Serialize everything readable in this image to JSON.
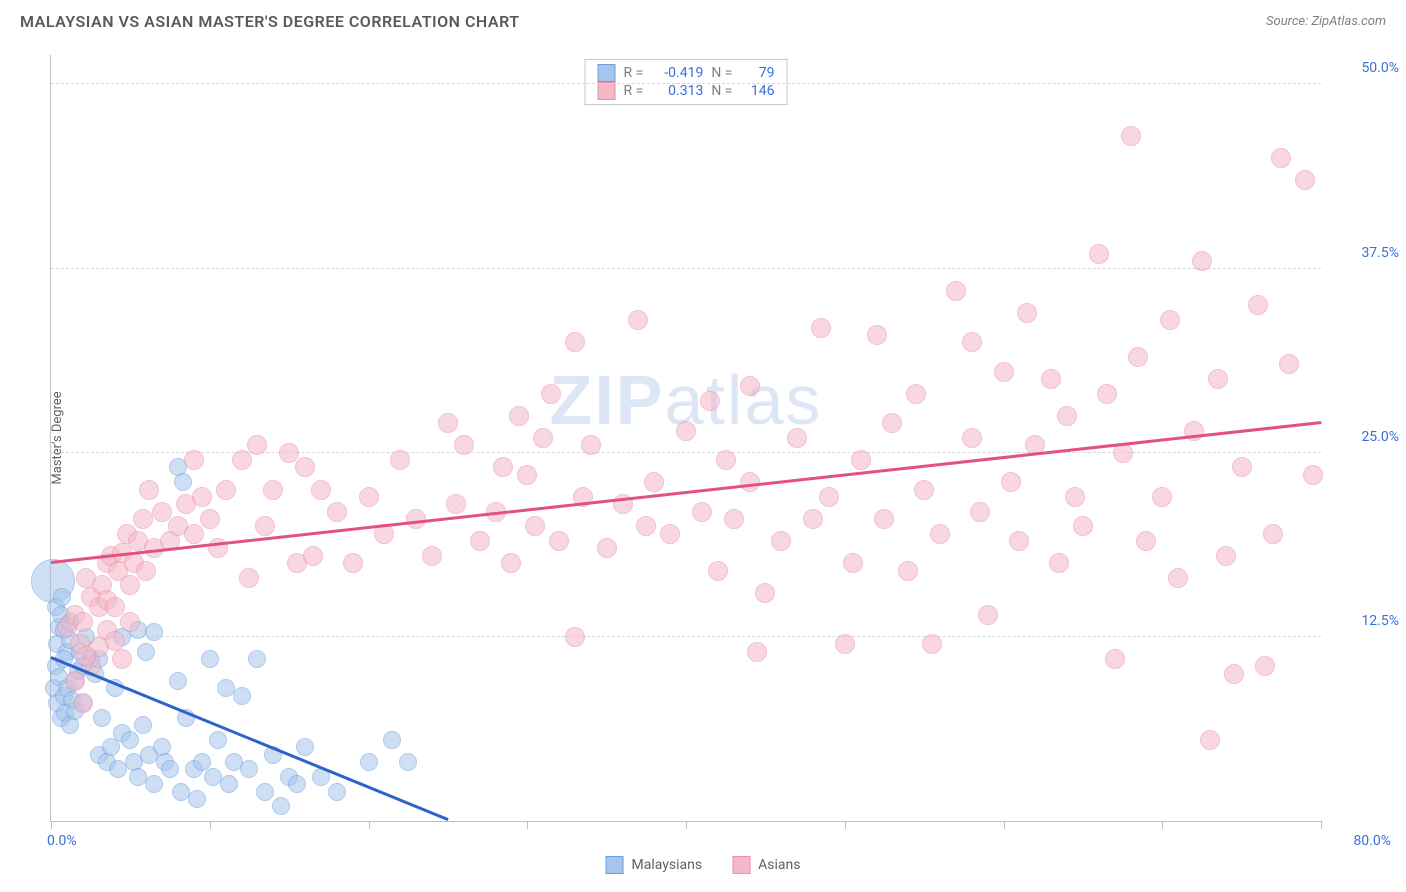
{
  "header": {
    "title": "MALAYSIAN VS ASIAN MASTER'S DEGREE CORRELATION CHART",
    "source_label": "Source: ",
    "source_value": "ZipAtlas.com"
  },
  "chart": {
    "type": "scatter",
    "background_color": "#ffffff",
    "grid_color": "#d8d8d8",
    "axis_color": "#c0c0c0",
    "y_axis_label": "Master's Degree",
    "y_axis_label_fontsize": 13,
    "y_axis_label_color": "#606060",
    "xlim": [
      0,
      80
    ],
    "ylim": [
      0,
      52
    ],
    "y_ticks": [
      {
        "value": 12.5,
        "label": "12.5%"
      },
      {
        "value": 25.0,
        "label": "25.0%"
      },
      {
        "value": 37.5,
        "label": "37.5%"
      },
      {
        "value": 50.0,
        "label": "50.0%"
      }
    ],
    "y_tick_color": "#3b6fd8",
    "x_tick_positions": [
      0,
      10,
      20,
      30,
      40,
      50,
      60,
      70,
      80
    ],
    "x_axis_min_label": "0.0%",
    "x_axis_max_label": "80.0%",
    "x_tick_color": "#3b6fd8",
    "watermark": {
      "text_bold": "ZIP",
      "text_light": "atlas",
      "color": "#9db8e2",
      "opacity": 0.35,
      "fontsize": 70
    }
  },
  "series": [
    {
      "id": "malaysians",
      "label": "Malaysians",
      "fill_color": "#a7c5ec",
      "stroke_color": "#6b9fe0",
      "fill_opacity": 0.55,
      "marker_radius": 9,
      "trend": {
        "x1": 0,
        "y1": 11.0,
        "x2": 25,
        "y2": 0,
        "color": "#2c63c9",
        "width": 2.5
      },
      "stats": {
        "r": "-0.419",
        "n": "79"
      },
      "points": [
        [
          0.1,
          16.3,
          22
        ],
        [
          0.3,
          14.5,
          9
        ],
        [
          0.5,
          13.2,
          9
        ],
        [
          0.6,
          14.0,
          9
        ],
        [
          0.4,
          12.0,
          9
        ],
        [
          0.8,
          13.0,
          9
        ],
        [
          0.3,
          10.5,
          9
        ],
        [
          0.2,
          9.0,
          9
        ],
        [
          0.5,
          9.8,
          9
        ],
        [
          0.7,
          15.2,
          9
        ],
        [
          1.0,
          11.5,
          9
        ],
        [
          1.2,
          12.3,
          9
        ],
        [
          0.4,
          8.0,
          9
        ],
        [
          0.8,
          8.5,
          9
        ],
        [
          1.0,
          9.0,
          9
        ],
        [
          1.3,
          8.2,
          9
        ],
        [
          1.5,
          9.5,
          9
        ],
        [
          1.7,
          10.2,
          9
        ],
        [
          0.6,
          7.0,
          9
        ],
        [
          0.9,
          7.3,
          9
        ],
        [
          1.2,
          6.5,
          9
        ],
        [
          1.5,
          7.5,
          9
        ],
        [
          1.8,
          11.5,
          9
        ],
        [
          2.0,
          8.0,
          9
        ],
        [
          2.2,
          12.5,
          9
        ],
        [
          2.5,
          11.0,
          9
        ],
        [
          2.8,
          10.0,
          9
        ],
        [
          3.0,
          4.5,
          9
        ],
        [
          3.2,
          7.0,
          9
        ],
        [
          3.5,
          4.0,
          9
        ],
        [
          3.8,
          5.0,
          9
        ],
        [
          4.0,
          9.0,
          9
        ],
        [
          4.2,
          3.5,
          9
        ],
        [
          4.5,
          6.0,
          9
        ],
        [
          5.0,
          5.5,
          9
        ],
        [
          5.2,
          4.0,
          9
        ],
        [
          5.5,
          3.0,
          9
        ],
        [
          5.8,
          6.5,
          9
        ],
        [
          6.0,
          11.5,
          9
        ],
        [
          6.2,
          4.5,
          9
        ],
        [
          6.5,
          2.5,
          9
        ],
        [
          7.0,
          5.0,
          9
        ],
        [
          7.2,
          4.0,
          9
        ],
        [
          7.5,
          3.5,
          9
        ],
        [
          8.0,
          9.5,
          9
        ],
        [
          8.2,
          2.0,
          9
        ],
        [
          8.5,
          7.0,
          9
        ],
        [
          9.0,
          3.5,
          9
        ],
        [
          9.2,
          1.5,
          9
        ],
        [
          9.5,
          4.0,
          9
        ],
        [
          10.0,
          11.0,
          9
        ],
        [
          10.2,
          3.0,
          9
        ],
        [
          10.5,
          5.5,
          9
        ],
        [
          11.0,
          9.0,
          9
        ],
        [
          11.2,
          2.5,
          9
        ],
        [
          11.5,
          4.0,
          9
        ],
        [
          12.0,
          8.5,
          9
        ],
        [
          12.5,
          3.5,
          9
        ],
        [
          13.0,
          11.0,
          9
        ],
        [
          13.5,
          2.0,
          9
        ],
        [
          14.0,
          4.5,
          9
        ],
        [
          14.5,
          1.0,
          9
        ],
        [
          15.0,
          3.0,
          9
        ],
        [
          15.5,
          2.5,
          9
        ],
        [
          16.0,
          5.0,
          9
        ],
        [
          17.0,
          3.0,
          9
        ],
        [
          18.0,
          2.0,
          9
        ],
        [
          20.0,
          4.0,
          9
        ],
        [
          21.5,
          5.5,
          9
        ],
        [
          22.5,
          4.0,
          9
        ],
        [
          8.0,
          24.0,
          9
        ],
        [
          8.3,
          23.0,
          9
        ],
        [
          4.5,
          12.5,
          9
        ],
        [
          5.5,
          13.0,
          9
        ],
        [
          6.5,
          12.8,
          9
        ],
        [
          3.0,
          11.0,
          9
        ],
        [
          2.0,
          10.5,
          9
        ],
        [
          1.2,
          13.5,
          9
        ],
        [
          0.8,
          11.0,
          9
        ]
      ]
    },
    {
      "id": "asians",
      "label": "Asians",
      "fill_color": "#f5b8c8",
      "stroke_color": "#e98fa8",
      "fill_opacity": 0.55,
      "marker_radius": 10,
      "trend": {
        "x1": 0,
        "y1": 17.5,
        "x2": 80,
        "y2": 27.0,
        "color": "#e3517e",
        "width": 2.5
      },
      "stats": {
        "r": "0.313",
        "n": "146"
      },
      "points": [
        [
          1.0,
          13.2,
          10
        ],
        [
          1.5,
          14.0,
          10
        ],
        [
          2.0,
          13.5,
          10
        ],
        [
          2.5,
          15.2,
          10
        ],
        [
          2.2,
          16.5,
          10
        ],
        [
          3.0,
          14.5,
          10
        ],
        [
          3.2,
          16.0,
          10
        ],
        [
          3.5,
          15.0,
          10
        ],
        [
          3.5,
          17.5,
          10
        ],
        [
          3.8,
          18.0,
          10
        ],
        [
          4.0,
          14.5,
          10
        ],
        [
          4.2,
          17.0,
          10
        ],
        [
          4.5,
          18.2,
          10
        ],
        [
          4.8,
          19.5,
          10
        ],
        [
          5.0,
          16.0,
          10
        ],
        [
          5.2,
          17.5,
          10
        ],
        [
          5.5,
          19.0,
          10
        ],
        [
          5.8,
          20.5,
          10
        ],
        [
          6.0,
          17.0,
          10
        ],
        [
          6.5,
          18.5,
          10
        ],
        [
          7.0,
          21.0,
          10
        ],
        [
          7.5,
          19.0,
          10
        ],
        [
          8.0,
          20.0,
          10
        ],
        [
          8.5,
          21.5,
          10
        ],
        [
          9.0,
          19.5,
          10
        ],
        [
          9.5,
          22.0,
          10
        ],
        [
          10.0,
          20.5,
          10
        ],
        [
          10.5,
          18.5,
          10
        ],
        [
          11.0,
          22.5,
          10
        ],
        [
          12.0,
          24.5,
          10
        ],
        [
          12.5,
          16.5,
          10
        ],
        [
          13.0,
          25.5,
          10
        ],
        [
          13.5,
          20.0,
          10
        ],
        [
          14.0,
          22.5,
          10
        ],
        [
          15.0,
          25.0,
          10
        ],
        [
          15.5,
          17.5,
          10
        ],
        [
          16.0,
          24.0,
          10
        ],
        [
          16.5,
          18.0,
          10
        ],
        [
          17.0,
          22.5,
          10
        ],
        [
          18.0,
          21.0,
          10
        ],
        [
          19.0,
          17.5,
          10
        ],
        [
          20.0,
          22.0,
          10
        ],
        [
          21.0,
          19.5,
          10
        ],
        [
          22.0,
          24.5,
          10
        ],
        [
          23.0,
          20.5,
          10
        ],
        [
          24.0,
          18.0,
          10
        ],
        [
          25.0,
          27.0,
          10
        ],
        [
          25.5,
          21.5,
          10
        ],
        [
          26.0,
          25.5,
          10
        ],
        [
          27.0,
          19.0,
          10
        ],
        [
          28.0,
          21.0,
          10
        ],
        [
          28.5,
          24.0,
          10
        ],
        [
          29.0,
          17.5,
          10
        ],
        [
          30.0,
          23.5,
          10
        ],
        [
          30.5,
          20.0,
          10
        ],
        [
          31.0,
          26.0,
          10
        ],
        [
          32.0,
          19.0,
          10
        ],
        [
          33.0,
          32.5,
          10
        ],
        [
          33.5,
          22.0,
          10
        ],
        [
          34.0,
          25.5,
          10
        ],
        [
          35.0,
          18.5,
          10
        ],
        [
          36.0,
          21.5,
          10
        ],
        [
          37.0,
          34.0,
          10
        ],
        [
          37.5,
          20.0,
          10
        ],
        [
          38.0,
          23.0,
          10
        ],
        [
          39.0,
          19.5,
          10
        ],
        [
          40.0,
          26.5,
          10
        ],
        [
          41.0,
          21.0,
          10
        ],
        [
          42.0,
          17.0,
          10
        ],
        [
          42.5,
          24.5,
          10
        ],
        [
          43.0,
          20.5,
          10
        ],
        [
          44.0,
          23.0,
          10
        ],
        [
          45.0,
          15.5,
          10
        ],
        [
          46.0,
          19.0,
          10
        ],
        [
          47.0,
          26.0,
          10
        ],
        [
          48.0,
          20.5,
          10
        ],
        [
          48.5,
          33.5,
          10
        ],
        [
          49.0,
          22.0,
          10
        ],
        [
          50.0,
          12.0,
          10
        ],
        [
          50.5,
          17.5,
          10
        ],
        [
          51.0,
          24.5,
          10
        ],
        [
          52.0,
          33.0,
          10
        ],
        [
          52.5,
          20.5,
          10
        ],
        [
          53.0,
          27.0,
          10
        ],
        [
          54.0,
          17.0,
          10
        ],
        [
          55.0,
          22.5,
          10
        ],
        [
          56.0,
          19.5,
          10
        ],
        [
          57.0,
          36.0,
          10
        ],
        [
          58.0,
          26.0,
          10
        ],
        [
          58.5,
          21.0,
          10
        ],
        [
          59.0,
          14.0,
          10
        ],
        [
          60.0,
          30.5,
          10
        ],
        [
          60.5,
          23.0,
          10
        ],
        [
          61.0,
          19.0,
          10
        ],
        [
          62.0,
          25.5,
          10
        ],
        [
          63.0,
          30.0,
          10
        ],
        [
          63.5,
          17.5,
          10
        ],
        [
          64.0,
          27.5,
          10
        ],
        [
          64.5,
          22.0,
          10
        ],
        [
          65.0,
          20.0,
          10
        ],
        [
          66.0,
          38.5,
          10
        ],
        [
          66.5,
          29.0,
          10
        ],
        [
          67.0,
          11.0,
          10
        ],
        [
          67.5,
          25.0,
          10
        ],
        [
          68.0,
          46.5,
          10
        ],
        [
          68.5,
          31.5,
          10
        ],
        [
          69.0,
          19.0,
          10
        ],
        [
          70.0,
          22.0,
          10
        ],
        [
          70.5,
          34.0,
          10
        ],
        [
          71.0,
          16.5,
          10
        ],
        [
          72.0,
          26.5,
          10
        ],
        [
          73.0,
          5.5,
          10
        ],
        [
          73.5,
          30.0,
          10
        ],
        [
          74.0,
          18.0,
          10
        ],
        [
          74.5,
          10.0,
          10
        ],
        [
          75.0,
          24.0,
          10
        ],
        [
          76.0,
          35.0,
          10
        ],
        [
          76.5,
          10.5,
          10
        ],
        [
          77.0,
          19.5,
          10
        ],
        [
          77.5,
          45.0,
          10
        ],
        [
          78.0,
          31.0,
          10
        ],
        [
          79.0,
          43.5,
          10
        ],
        [
          79.5,
          23.5,
          10
        ],
        [
          1.5,
          9.5,
          10
        ],
        [
          2.0,
          8.0,
          10
        ],
        [
          2.5,
          10.5,
          10
        ],
        [
          3.0,
          11.8,
          10
        ],
        [
          3.5,
          13.0,
          10
        ],
        [
          4.0,
          12.2,
          10
        ],
        [
          4.5,
          11.0,
          10
        ],
        [
          5.0,
          13.5,
          10
        ],
        [
          1.8,
          12.0,
          10
        ],
        [
          2.2,
          11.2,
          10
        ],
        [
          33.0,
          12.5,
          10
        ],
        [
          44.5,
          11.5,
          10
        ],
        [
          55.5,
          12.0,
          10
        ],
        [
          29.5,
          27.5,
          10
        ],
        [
          31.5,
          29.0,
          10
        ],
        [
          41.5,
          28.5,
          10
        ],
        [
          44.0,
          29.5,
          10
        ],
        [
          54.5,
          29.0,
          10
        ],
        [
          58.0,
          32.5,
          10
        ],
        [
          61.5,
          34.5,
          10
        ],
        [
          72.5,
          38.0,
          10
        ],
        [
          6.2,
          22.5,
          10
        ],
        [
          9.0,
          24.5,
          10
        ]
      ]
    }
  ],
  "legend_top": {
    "border_color": "#c8c8c8",
    "rows": [
      {
        "swatch_fill": "#a7c5ec",
        "swatch_stroke": "#6b9fe0",
        "r_label": "R =",
        "r_val": "-0.419",
        "n_label": "N =",
        "n_val": "79"
      },
      {
        "swatch_fill": "#f5b8c8",
        "swatch_stroke": "#e98fa8",
        "r_label": "R =",
        "r_val": "0.313",
        "n_label": "N =",
        "n_val": "146"
      }
    ]
  },
  "legend_bottom": {
    "items": [
      {
        "swatch_fill": "#a7c5ec",
        "swatch_stroke": "#6b9fe0",
        "label": "Malaysians"
      },
      {
        "swatch_fill": "#f5b8c8",
        "swatch_stroke": "#e98fa8",
        "label": "Asians"
      }
    ]
  }
}
